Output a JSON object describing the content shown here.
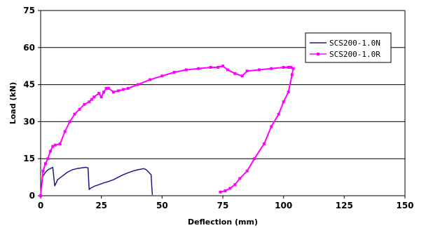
{
  "chart_data": {
    "type": "line",
    "xlabel": "Deflection (mm)",
    "ylabel": "Load (kN)",
    "xlim": [
      0,
      150
    ],
    "ylim": [
      0,
      75
    ],
    "xticks": [
      0,
      25,
      50,
      75,
      100,
      125,
      150
    ],
    "yticks": [
      0,
      15,
      30,
      45,
      60,
      75
    ],
    "grid": "horizontal",
    "legend_position": "top-right",
    "series": [
      {
        "name": "SCS200-1.0N",
        "color": "#1a1a80",
        "marker": "none",
        "x": [
          0,
          0.5,
          1,
          2,
          3,
          4,
          5,
          5.8,
          6.2,
          7,
          9,
          11,
          13,
          15,
          17,
          18.5,
          19.5,
          19.8,
          20,
          20.5,
          22,
          24,
          26,
          28,
          30,
          32,
          34,
          36,
          38,
          40,
          41.5,
          42.5,
          43.5,
          44.5,
          45.5,
          45.8,
          46
        ],
        "y": [
          0,
          6,
          8,
          9.5,
          10.5,
          11,
          11.5,
          4,
          4.8,
          6.5,
          8,
          9.5,
          10.5,
          11,
          11.3,
          11.5,
          11.3,
          6,
          2.5,
          3,
          3.8,
          4.5,
          5.2,
          5.8,
          6.5,
          7.5,
          8.5,
          9.3,
          10,
          10.5,
          10.8,
          11,
          10.5,
          9.5,
          8.5,
          3,
          0.3
        ]
      },
      {
        "name": "SCS200-1.0R",
        "color": "#ff00ff",
        "marker": "square",
        "x": [
          0,
          1,
          2,
          3,
          4,
          5,
          6,
          8,
          10,
          12,
          14,
          16,
          18,
          20,
          21,
          22,
          24,
          25,
          26,
          27,
          28,
          30,
          32,
          34,
          36,
          40,
          45,
          50,
          55,
          60,
          65,
          70,
          73,
          75,
          77,
          80,
          83,
          85,
          90,
          95,
          100,
          102,
          103,
          104,
          103.5,
          102,
          100,
          98,
          95,
          92,
          88,
          85,
          82,
          80,
          78,
          76,
          74
        ],
        "y": [
          0,
          10,
          13,
          15,
          18,
          20,
          20.5,
          21,
          26,
          30,
          33,
          35,
          37,
          38,
          39,
          40,
          41.5,
          40,
          42,
          43.5,
          43.5,
          42,
          42.5,
          43,
          43.5,
          45,
          47,
          48.5,
          50,
          51,
          51.5,
          52,
          52,
          52.5,
          51,
          49.5,
          48.5,
          50.5,
          51,
          51.5,
          52,
          52,
          52,
          51.5,
          49,
          42,
          38,
          33,
          28,
          21,
          15,
          10,
          7,
          4.5,
          3,
          2,
          1.5
        ]
      }
    ]
  }
}
